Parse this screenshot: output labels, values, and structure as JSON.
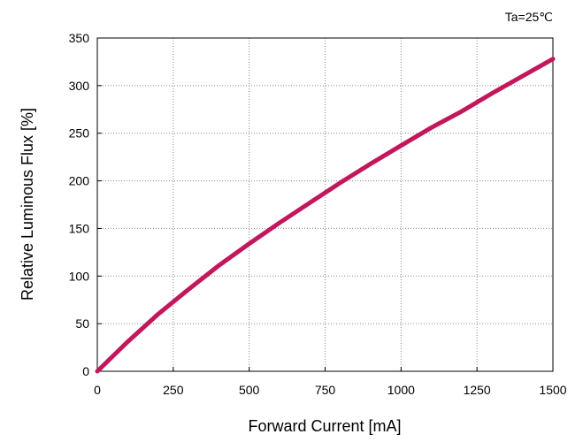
{
  "chart_data": {
    "type": "line",
    "title": "",
    "annotation": "Ta=25℃",
    "xlabel": "Forward Current [mA]",
    "ylabel": "Relative Luminous Flux [%]",
    "xlim": [
      0,
      1500
    ],
    "ylim": [
      0,
      350
    ],
    "xticks": [
      0,
      250,
      500,
      750,
      1000,
      1250,
      1500
    ],
    "yticks": [
      0,
      50,
      100,
      150,
      200,
      250,
      300,
      350
    ],
    "grid": true,
    "series": [
      {
        "color": "#c2185b",
        "x": [
          0,
          100,
          200,
          300,
          400,
          500,
          600,
          700,
          800,
          900,
          1000,
          1100,
          1200,
          1300,
          1400,
          1500
        ],
        "y": [
          0,
          31,
          60,
          86,
          111,
          134,
          156,
          177,
          198,
          218,
          237,
          256,
          273,
          292,
          310,
          328
        ]
      }
    ]
  }
}
